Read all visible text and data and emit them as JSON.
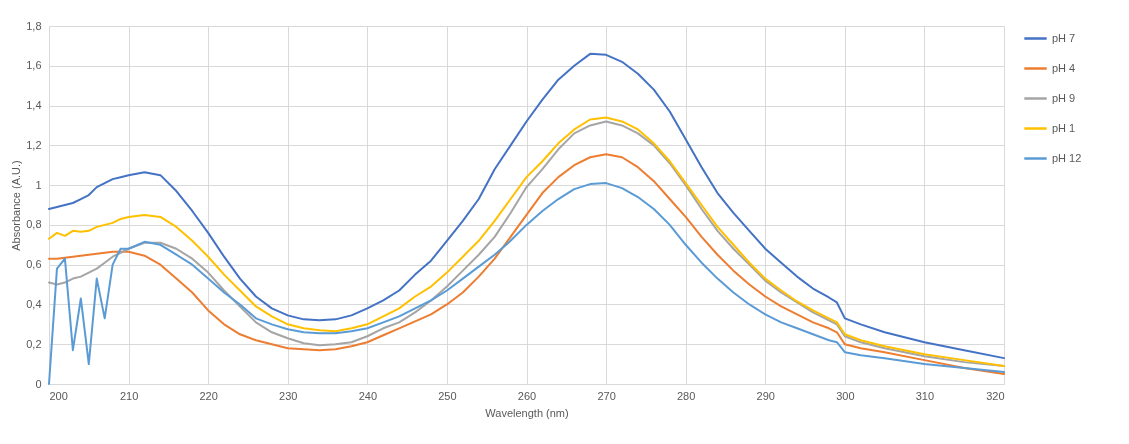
{
  "chart_data": {
    "type": "line",
    "xlabel": "Wavelength (nm)",
    "ylabel": "Absorbance (A.U.)",
    "x": [
      200,
      201,
      202,
      203,
      204,
      205,
      206,
      207,
      208,
      209,
      210,
      212,
      214,
      216,
      218,
      220,
      222,
      224,
      226,
      228,
      230,
      232,
      234,
      236,
      238,
      240,
      242,
      244,
      246,
      248,
      250,
      252,
      254,
      256,
      258,
      260,
      262,
      264,
      266,
      268,
      270,
      272,
      274,
      276,
      278,
      280,
      282,
      284,
      286,
      288,
      290,
      292,
      294,
      296,
      298,
      299,
      300,
      302,
      305,
      310,
      315,
      320
    ],
    "xlim": [
      200,
      320
    ],
    "xticks": [
      200,
      210,
      220,
      230,
      240,
      250,
      260,
      270,
      280,
      290,
      300,
      310,
      320
    ],
    "ylim": [
      0,
      1.8
    ],
    "yticks": [
      0,
      {
        "value": 0.2,
        "label": "0,2"
      },
      {
        "value": 0.4,
        "label": "0,4"
      },
      {
        "value": 0.6,
        "label": "0,6"
      },
      {
        "value": 0.8,
        "label": "0,8"
      },
      1,
      {
        "value": 1.2,
        "label": "1,2"
      },
      {
        "value": 1.4,
        "label": "1,4"
      },
      {
        "value": 1.6,
        "label": "1,6"
      },
      {
        "value": 1.8,
        "label": "1,8"
      }
    ],
    "grid": true,
    "legend": "right",
    "line_style": "solid",
    "series": [
      {
        "name": "pH 7",
        "color": "#4472c4",
        "values": [
          0.88,
          0.89,
          0.9,
          0.91,
          0.93,
          0.95,
          0.99,
          1.01,
          1.03,
          1.04,
          1.05,
          1.065,
          1.05,
          0.97,
          0.87,
          0.76,
          0.64,
          0.53,
          0.44,
          0.38,
          0.345,
          0.325,
          0.32,
          0.325,
          0.345,
          0.38,
          0.42,
          0.47,
          0.55,
          0.62,
          0.72,
          0.82,
          0.93,
          1.08,
          1.2,
          1.32,
          1.43,
          1.53,
          1.6,
          1.66,
          1.655,
          1.62,
          1.56,
          1.48,
          1.37,
          1.23,
          1.09,
          0.96,
          0.86,
          0.77,
          0.68,
          0.61,
          0.54,
          0.48,
          0.435,
          0.41,
          0.33,
          0.3,
          0.26,
          0.21,
          0.17,
          0.13
        ]
      },
      {
        "name": "pH 4",
        "color": "#ed7d31",
        "values": [
          0.63,
          0.63,
          0.635,
          0.64,
          0.645,
          0.65,
          0.655,
          0.66,
          0.665,
          0.665,
          0.665,
          0.645,
          0.6,
          0.53,
          0.46,
          0.37,
          0.3,
          0.25,
          0.22,
          0.2,
          0.18,
          0.175,
          0.17,
          0.175,
          0.19,
          0.21,
          0.245,
          0.28,
          0.315,
          0.35,
          0.4,
          0.46,
          0.54,
          0.63,
          0.74,
          0.85,
          0.96,
          1.04,
          1.1,
          1.14,
          1.155,
          1.14,
          1.09,
          1.02,
          0.93,
          0.84,
          0.74,
          0.65,
          0.57,
          0.5,
          0.44,
          0.39,
          0.35,
          0.31,
          0.28,
          0.26,
          0.2,
          0.18,
          0.16,
          0.12,
          0.08,
          0.05
        ]
      },
      {
        "name": "pH 9",
        "color": "#a5a5a5",
        "values": [
          0.51,
          0.5,
          0.51,
          0.53,
          0.54,
          0.56,
          0.58,
          0.61,
          0.64,
          0.66,
          0.68,
          0.71,
          0.71,
          0.68,
          0.63,
          0.56,
          0.47,
          0.39,
          0.31,
          0.26,
          0.23,
          0.205,
          0.195,
          0.2,
          0.21,
          0.24,
          0.28,
          0.31,
          0.36,
          0.42,
          0.49,
          0.57,
          0.65,
          0.74,
          0.86,
          0.99,
          1.08,
          1.18,
          1.26,
          1.3,
          1.32,
          1.3,
          1.26,
          1.2,
          1.11,
          1.0,
          0.88,
          0.77,
          0.68,
          0.6,
          0.52,
          0.46,
          0.41,
          0.36,
          0.32,
          0.3,
          0.24,
          0.21,
          0.18,
          0.14,
          0.11,
          0.09
        ]
      },
      {
        "name": "pH 1",
        "color": "#ffc000",
        "values": [
          0.73,
          0.76,
          0.745,
          0.77,
          0.765,
          0.77,
          0.79,
          0.8,
          0.81,
          0.83,
          0.84,
          0.85,
          0.84,
          0.79,
          0.72,
          0.64,
          0.55,
          0.47,
          0.39,
          0.34,
          0.3,
          0.28,
          0.27,
          0.265,
          0.28,
          0.3,
          0.34,
          0.38,
          0.44,
          0.49,
          0.56,
          0.64,
          0.72,
          0.82,
          0.93,
          1.04,
          1.12,
          1.21,
          1.28,
          1.33,
          1.34,
          1.32,
          1.28,
          1.21,
          1.12,
          1.01,
          0.9,
          0.79,
          0.7,
          0.61,
          0.53,
          0.47,
          0.415,
          0.37,
          0.33,
          0.31,
          0.25,
          0.22,
          0.19,
          0.15,
          0.12,
          0.09
        ]
      },
      {
        "name": "pH 12",
        "color": "#5b9bd5",
        "values": [
          0.0,
          0.58,
          0.63,
          0.17,
          0.43,
          0.1,
          0.53,
          0.33,
          0.6,
          0.68,
          0.68,
          0.715,
          0.7,
          0.65,
          0.6,
          0.53,
          0.46,
          0.4,
          0.33,
          0.3,
          0.275,
          0.26,
          0.255,
          0.255,
          0.265,
          0.28,
          0.31,
          0.34,
          0.38,
          0.42,
          0.47,
          0.53,
          0.59,
          0.65,
          0.72,
          0.8,
          0.87,
          0.93,
          0.98,
          1.005,
          1.01,
          0.985,
          0.94,
          0.88,
          0.8,
          0.7,
          0.61,
          0.53,
          0.46,
          0.4,
          0.35,
          0.31,
          0.28,
          0.25,
          0.22,
          0.21,
          0.16,
          0.145,
          0.13,
          0.1,
          0.08,
          0.06
        ]
      }
    ]
  }
}
